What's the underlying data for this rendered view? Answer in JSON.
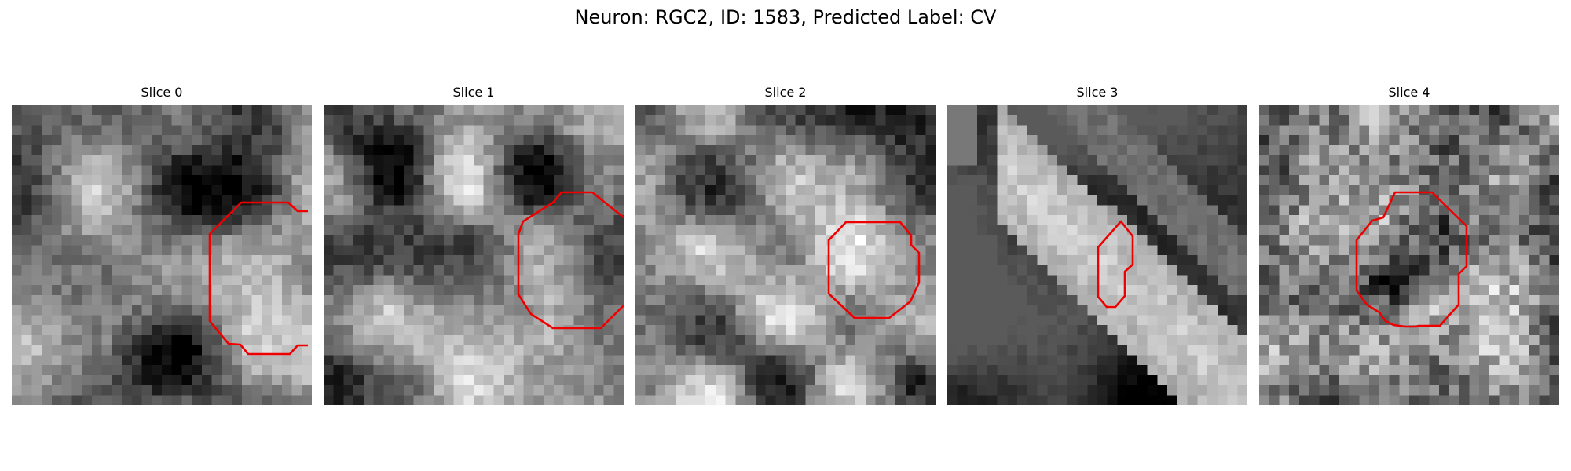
{
  "figure": {
    "title": "Neuron: RGC2, ID: 1583, Predicted Label: CV"
  },
  "contour_color": "#ee0000",
  "colormap": "gray",
  "panels": [
    {
      "title": "Slice 0"
    },
    {
      "title": "Slice 1"
    },
    {
      "title": "Slice 2"
    },
    {
      "title": "Slice 3"
    },
    {
      "title": "Slice 4"
    }
  ]
}
